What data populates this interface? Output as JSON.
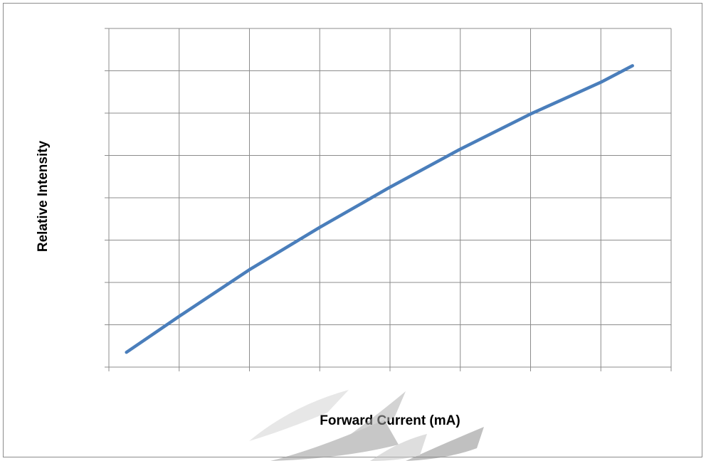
{
  "chart_data": {
    "type": "line",
    "title": "",
    "xlabel": "Forward Current (mA)",
    "ylabel": "Relative Intensity",
    "xlim": [
      0,
      8
    ],
    "ylim": [
      0,
      8
    ],
    "grid": true,
    "legend": "none",
    "series": [
      {
        "color": "#4a7ebb",
        "x": [
          0.25,
          1.0,
          2.0,
          3.0,
          4.0,
          5.0,
          6.0,
          7.0,
          7.45
        ],
        "y": [
          0.35,
          1.2,
          2.3,
          3.3,
          4.25,
          5.15,
          5.98,
          6.73,
          7.12
        ]
      }
    ]
  },
  "colors": {
    "line": "#4a7ebb",
    "grid": "#8c8c8c",
    "frame": "#8c8c8c"
  }
}
